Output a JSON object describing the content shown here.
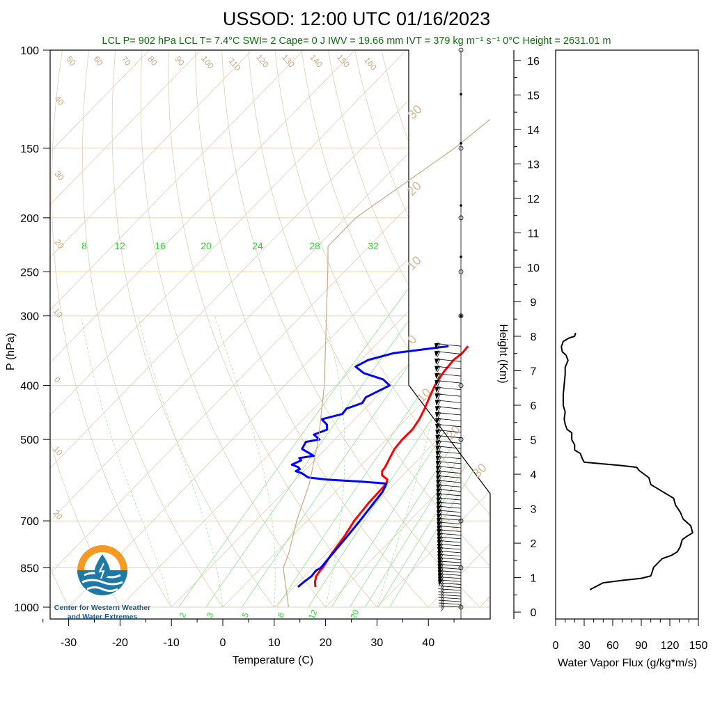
{
  "title": "USSOD: 12:00 UTC 01/16/2023",
  "subtitle": "LCL P= 902 hPa  LCL T= 7.4°C  SWI= 2  Cape= 0 J  IWV = 19.66 mm  IVT = 379 kg m⁻¹ s⁻¹  0°C Height = 2631.01 m",
  "colors": {
    "temperature": "#ff0000",
    "dewpoint": "#0000ff",
    "parcel": "#c8a882",
    "mixing_ratio": "#22dd22",
    "isobar": "#e6d2b4",
    "subtitle": "#0c6f0c",
    "flux": "#000000"
  },
  "logo": {
    "icon": "water-drop-logo-icon",
    "line1": "Center for Western Weather",
    "line2": "and Water Extremes"
  },
  "chart_data": [
    {
      "type": "line",
      "subtype": "skew-t log-p diagram",
      "xlabel": "Temperature (C)",
      "ylabel": "P (hPa)",
      "xlim": [
        -35,
        50
      ],
      "ylim": [
        1000,
        100
      ],
      "x_ticks": [
        "-30",
        "-20",
        "-10",
        "0",
        "10",
        "20",
        "30",
        "40"
      ],
      "y_ticks": [
        "100",
        "150",
        "200",
        "250",
        "300",
        "400",
        "500",
        "700",
        "850",
        "1000"
      ],
      "y_scale": "log",
      "mixing_ratio_labels_upper": [
        "8",
        "12",
        "16",
        "20",
        "24",
        "28",
        "32"
      ],
      "mixing_ratio_labels_lower": [
        "2",
        "3",
        "5",
        "8",
        "12",
        "20"
      ],
      "dry_adiabat_labels": [
        "50",
        "60",
        "70",
        "80",
        "90",
        "100",
        "110",
        "120",
        "130",
        "140",
        "150",
        "160"
      ],
      "isotherm_labels": [
        "40",
        "30",
        "20",
        "10",
        "0",
        "10",
        "20"
      ],
      "moist_adiabat_labels": [
        "30",
        "20",
        "10",
        "0",
        "10",
        "20",
        "30"
      ],
      "series": [
        {
          "key": "temperature",
          "points": [
            [
              920,
              14.2
            ],
            [
              900,
              13.1
            ],
            [
              880,
              12.3
            ],
            [
              860,
              12.0
            ],
            [
              850,
              12.0
            ],
            [
              800,
              11.0
            ],
            [
              750,
              10.3
            ],
            [
              700,
              9.2
            ],
            [
              650,
              8.6
            ],
            [
              600,
              8.4
            ],
            [
              590,
              7.8
            ],
            [
              580,
              6.0
            ],
            [
              570,
              5.2
            ],
            [
              560,
              5.0
            ],
            [
              540,
              4.2
            ],
            [
              520,
              3.4
            ],
            [
              500,
              3.1
            ],
            [
              480,
              3.2
            ],
            [
              460,
              2.6
            ],
            [
              440,
              1.6
            ],
            [
              420,
              0.4
            ],
            [
              400,
              -0.8
            ],
            [
              380,
              -1.6
            ],
            [
              360,
              -2.0
            ],
            [
              350,
              -1.6
            ],
            [
              340,
              -1.8
            ]
          ]
        },
        {
          "key": "dewpoint",
          "points": [
            [
              920,
              10.8
            ],
            [
              900,
              11.0
            ],
            [
              880,
              11.4
            ],
            [
              860,
              11.2
            ],
            [
              850,
              11.6
            ],
            [
              800,
              11.2
            ],
            [
              750,
              10.8
            ],
            [
              700,
              10.3
            ],
            [
              650,
              9.6
            ],
            [
              620,
              9.2
            ],
            [
              600,
              8.4
            ],
            [
              595,
              3.0
            ],
            [
              590,
              -4.0
            ],
            [
              585,
              -8.0
            ],
            [
              575,
              -10.0
            ],
            [
              570,
              -11.6
            ],
            [
              565,
              -11.2
            ],
            [
              560,
              -12.0
            ],
            [
              555,
              -13.6
            ],
            [
              545,
              -12.6
            ],
            [
              540,
              -13.4
            ],
            [
              535,
              -11.0
            ],
            [
              520,
              -14.6
            ],
            [
              505,
              -15.2
            ],
            [
              500,
              -13.0
            ],
            [
              490,
              -15.0
            ],
            [
              480,
              -13.4
            ],
            [
              470,
              -14.4
            ],
            [
              460,
              -16.4
            ],
            [
              450,
              -13.4
            ],
            [
              440,
              -13.6
            ],
            [
              430,
              -11.6
            ],
            [
              420,
              -12.0
            ],
            [
              410,
              -10.8
            ],
            [
              400,
              -9.6
            ],
            [
              390,
              -12.0
            ],
            [
              380,
              -17.0
            ],
            [
              370,
              -19.8
            ],
            [
              360,
              -18.6
            ],
            [
              350,
              -15.0
            ],
            [
              340,
              -5.6
            ]
          ]
        },
        {
          "key": "parcel",
          "points": [
            [
              1000,
              12.8
            ],
            [
              902,
              7.4
            ],
            [
              850,
              4.3
            ],
            [
              800,
              2.6
            ],
            [
              700,
              -2.0
            ],
            [
              600,
              -6.6
            ],
            [
              500,
              -13.2
            ],
            [
              400,
              -22.3
            ],
            [
              300,
              -35.1
            ],
            [
              250,
              -43.2
            ],
            [
              225,
              -48.0
            ],
            [
              200,
              -48.0
            ],
            [
              150,
              -42.0
            ],
            [
              100,
              -37.0
            ]
          ]
        }
      ]
    },
    {
      "type": "line",
      "subtype": "wind barbs",
      "barb_count": 60,
      "pressure_range": [
        1000,
        340
      ]
    },
    {
      "type": "line",
      "xlabel": "Water Vapor Flux (g/kg*m/s)",
      "ylabel": "Height (Km)",
      "xlim": [
        0,
        150
      ],
      "ylim": [
        -0.2,
        16.3
      ],
      "x_ticks": [
        "0",
        "30",
        "60",
        "90",
        "120",
        "150"
      ],
      "y_ticks": [
        "0",
        "1",
        "2",
        "3",
        "4",
        "5",
        "6",
        "7",
        "8",
        "9",
        "10",
        "11",
        "12",
        "13",
        "14",
        "15",
        "16"
      ],
      "series": [
        {
          "key": "flux",
          "points": [
            [
              36,
              0.65
            ],
            [
              50,
              0.85
            ],
            [
              70,
              0.92
            ],
            [
              90,
              0.98
            ],
            [
              100,
              1.05
            ],
            [
              103,
              1.3
            ],
            [
              112,
              1.55
            ],
            [
              122,
              1.65
            ],
            [
              128,
              1.75
            ],
            [
              131,
              1.9
            ],
            [
              133,
              2.1
            ],
            [
              138,
              2.2
            ],
            [
              144,
              2.3
            ],
            [
              142,
              2.5
            ],
            [
              134,
              2.7
            ],
            [
              131,
              2.9
            ],
            [
              126,
              3.1
            ],
            [
              124,
              3.3
            ],
            [
              118,
              3.4
            ],
            [
              112,
              3.5
            ],
            [
              106,
              3.6
            ],
            [
              100,
              3.7
            ],
            [
              98,
              3.9
            ],
            [
              93,
              4.0
            ],
            [
              88,
              4.1
            ],
            [
              85,
              4.2
            ],
            [
              70,
              4.25
            ],
            [
              50,
              4.3
            ],
            [
              30,
              4.35
            ],
            [
              28,
              4.45
            ],
            [
              26,
              4.6
            ],
            [
              20,
              4.7
            ],
            [
              20,
              4.85
            ],
            [
              17,
              5.0
            ],
            [
              17,
              5.2
            ],
            [
              12,
              5.3
            ],
            [
              10,
              5.45
            ],
            [
              9,
              5.6
            ],
            [
              10,
              5.8
            ],
            [
              8,
              6.0
            ],
            [
              8,
              6.3
            ],
            [
              9,
              6.6
            ],
            [
              10,
              6.9
            ],
            [
              10,
              7.1
            ],
            [
              13,
              7.3
            ],
            [
              11,
              7.45
            ],
            [
              7,
              7.55
            ],
            [
              6,
              7.7
            ],
            [
              8,
              7.85
            ],
            [
              14,
              7.95
            ],
            [
              20,
              8.0
            ],
            [
              21,
              8.1
            ]
          ]
        }
      ]
    }
  ]
}
